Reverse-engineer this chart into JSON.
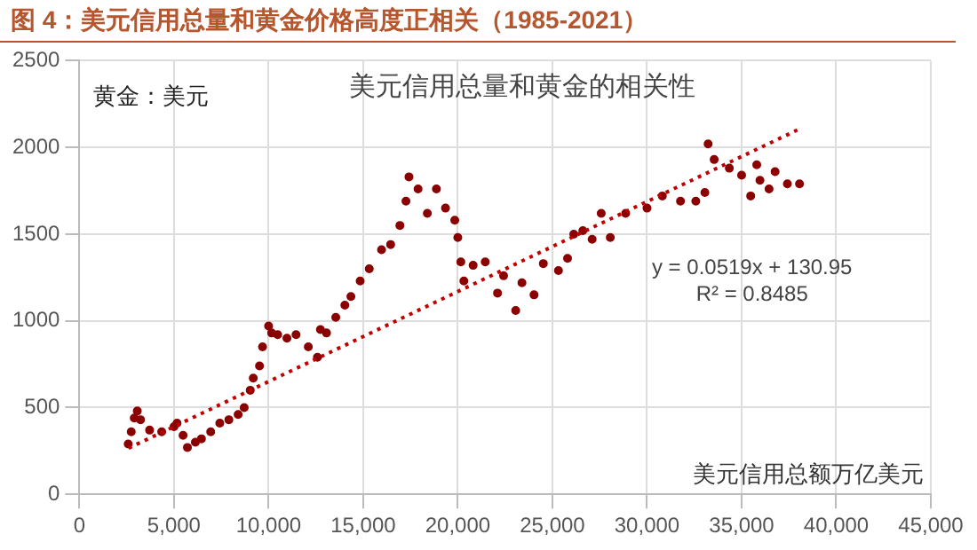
{
  "chart_data": {
    "type": "scatter",
    "title": "图 4：美元信用总量和黄金价格高度正相关（1985-2021）",
    "subtitle": "美元信用总量和黄金的相关性",
    "xlabel": "美元信用总额万亿美元",
    "ylabel": "黄金：美元",
    "annotations": [
      "y = 0.0519x + 130.95",
      "R² = 0.8485"
    ],
    "series": [
      {
        "color": "#8b0000",
        "marker": "circle",
        "x": [
          2580,
          2740,
          2900,
          3060,
          3230,
          3710,
          4350,
          5000,
          5160,
          5480,
          5710,
          6130,
          6450,
          6940,
          7420,
          7900,
          8390,
          8710,
          9030,
          9190,
          9520,
          9680,
          10000,
          10160,
          10480,
          10970,
          11450,
          12100,
          12580,
          12740,
          13060,
          13550,
          14030,
          14350,
          14840,
          15320,
          15970,
          16450,
          16940,
          17260,
          17420,
          17900,
          18390,
          18870,
          19350,
          19840,
          20000,
          20160,
          20320,
          20810,
          21450,
          22100,
          22420,
          23060,
          23390,
          24030,
          24520,
          25320,
          25800,
          26130,
          26610,
          27100,
          27580,
          28060,
          28870,
          30000,
          30810,
          31770,
          32580,
          33060,
          33230,
          33550,
          34350,
          35000,
          35480,
          35800,
          35970,
          36450,
          36770,
          37420,
          38060
        ],
        "values": [
          290,
          360,
          440,
          480,
          430,
          370,
          360,
          390,
          410,
          340,
          270,
          300,
          320,
          360,
          410,
          430,
          460,
          500,
          600,
          670,
          740,
          850,
          970,
          930,
          920,
          900,
          920,
          850,
          790,
          950,
          930,
          1020,
          1090,
          1140,
          1230,
          1300,
          1410,
          1440,
          1550,
          1690,
          1830,
          1760,
          1620,
          1760,
          1650,
          1580,
          1480,
          1340,
          1230,
          1320,
          1340,
          1160,
          1260,
          1060,
          1220,
          1150,
          1330,
          1290,
          1360,
          1500,
          1520,
          1470,
          1620,
          1480,
          1620,
          1650,
          1720,
          1690,
          1690,
          1740,
          2020,
          1930,
          1880,
          1840,
          1720,
          1900,
          1810,
          1760,
          1860,
          1790,
          1790
        ]
      },
      {
        "type": "line",
        "color": "#c00000",
        "line_style": "dotted",
        "x": [
          2600,
          38000
        ],
        "values": [
          266,
          2103
        ]
      }
    ],
    "xlim": [
      0,
      45000
    ],
    "xticks": [
      {
        "value": 0,
        "label": "0"
      },
      {
        "value": 5000,
        "label": "5,000"
      },
      {
        "value": 10000,
        "label": "10,000"
      },
      {
        "value": 15000,
        "label": "15,000"
      },
      {
        "value": 20000,
        "label": "20,000"
      },
      {
        "value": 25000,
        "label": "25,000"
      },
      {
        "value": 30000,
        "label": "30,000"
      },
      {
        "value": 35000,
        "label": "35,000"
      },
      {
        "value": 40000,
        "label": "40,000"
      },
      {
        "value": 45000,
        "label": "45,000"
      }
    ],
    "ylim": [
      0,
      2500
    ],
    "yticks": [
      0,
      500,
      1000,
      1500,
      2000,
      2500
    ],
    "grid": true,
    "legend": false
  }
}
